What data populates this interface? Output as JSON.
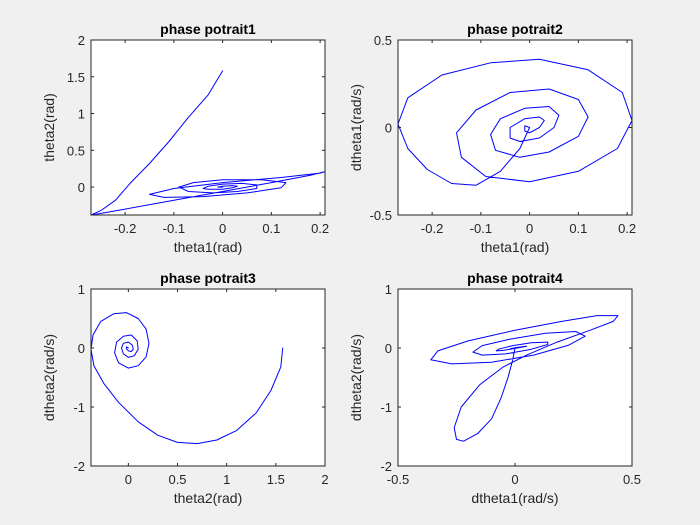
{
  "figure": {
    "background": "#f0f0f0",
    "line_color": "#0000ff"
  },
  "chart_data": [
    {
      "type": "line",
      "title": "phase potrait1",
      "xlabel": "theta1(rad)",
      "ylabel": "theta2(rad)",
      "xlim": [
        -0.27,
        0.21
      ],
      "ylim": [
        -0.38,
        2.0
      ],
      "xticks": [
        -0.2,
        -0.1,
        0,
        0.1,
        0.2
      ],
      "xtick_labels": [
        "-0.2",
        "-0.1",
        "0",
        "0.1",
        "0.2"
      ],
      "yticks": [
        0,
        0.5,
        1,
        1.5,
        2
      ],
      "ytick_labels": [
        "0",
        "0.5",
        "1",
        "1.5",
        "2"
      ],
      "series": [
        {
          "x": [
            0.0,
            -0.03,
            -0.07,
            -0.11,
            -0.15,
            -0.19,
            -0.22,
            -0.25,
            -0.27,
            -0.26,
            -0.2,
            -0.1,
            0.0,
            0.1,
            0.18,
            0.21,
            0.2,
            0.12,
            0.0,
            -0.1,
            -0.15,
            -0.12,
            -0.04,
            0.05,
            0.12,
            0.13,
            0.08,
            0.0,
            -0.06,
            -0.09,
            -0.07,
            -0.02,
            0.03,
            0.07,
            0.07,
            0.04,
            0.0,
            -0.03,
            -0.04,
            -0.03,
            0.0,
            0.02,
            0.03,
            0.02,
            0.0,
            -0.01,
            0.0
          ],
          "y": [
            1.58,
            1.25,
            0.95,
            0.62,
            0.32,
            0.05,
            -0.18,
            -0.32,
            -0.38,
            -0.37,
            -0.3,
            -0.18,
            -0.06,
            0.06,
            0.16,
            0.21,
            0.19,
            0.13,
            0.06,
            -0.02,
            -0.1,
            -0.14,
            -0.13,
            -0.08,
            -0.01,
            0.06,
            0.1,
            0.1,
            0.06,
            0.0,
            -0.06,
            -0.08,
            -0.06,
            -0.02,
            0.03,
            0.05,
            0.04,
            0.01,
            -0.02,
            -0.03,
            -0.03,
            -0.01,
            0.01,
            0.02,
            0.01,
            0.0,
            0.0
          ]
        }
      ]
    },
    {
      "type": "line",
      "title": "phase potrait2",
      "xlabel": "theta1(rad)",
      "ylabel": "dtheta1(rad/s)",
      "xlim": [
        -0.27,
        0.21
      ],
      "ylim": [
        -0.5,
        0.5
      ],
      "xticks": [
        -0.2,
        -0.1,
        0,
        0.1,
        0.2
      ],
      "xtick_labels": [
        "-0.2",
        "-0.1",
        "0",
        "0.1",
        "0.2"
      ],
      "yticks": [
        -0.5,
        0,
        0.5
      ],
      "ytick_labels": [
        "-0.5",
        "0",
        "0.5"
      ],
      "series": [
        {
          "x": [
            0.0,
            -0.02,
            -0.06,
            -0.11,
            -0.16,
            -0.21,
            -0.25,
            -0.27,
            -0.25,
            -0.18,
            -0.08,
            0.02,
            0.12,
            0.19,
            0.21,
            0.18,
            0.1,
            0.0,
            -0.09,
            -0.14,
            -0.15,
            -0.11,
            -0.04,
            0.04,
            0.1,
            0.12,
            0.1,
            0.04,
            -0.02,
            -0.07,
            -0.08,
            -0.06,
            -0.01,
            0.04,
            0.06,
            0.05,
            0.02,
            -0.02,
            -0.04,
            -0.04,
            -0.01,
            0.02,
            0.03,
            0.02,
            0.0,
            -0.01,
            -0.01,
            0.0
          ],
          "y": [
            0.0,
            -0.12,
            -0.25,
            -0.33,
            -0.32,
            -0.24,
            -0.12,
            0.02,
            0.17,
            0.3,
            0.37,
            0.39,
            0.33,
            0.2,
            0.04,
            -0.12,
            -0.25,
            -0.31,
            -0.28,
            -0.17,
            -0.03,
            0.1,
            0.2,
            0.22,
            0.16,
            0.06,
            -0.05,
            -0.14,
            -0.17,
            -0.13,
            -0.04,
            0.05,
            0.11,
            0.12,
            0.07,
            0.0,
            -0.06,
            -0.08,
            -0.06,
            0.0,
            0.05,
            0.06,
            0.04,
            0.0,
            -0.03,
            -0.02,
            0.01,
            0.0
          ]
        }
      ]
    },
    {
      "type": "line",
      "title": "phase potrait3",
      "xlabel": "theta2(rad)",
      "ylabel": "dtheta2(rad/s)",
      "xlim": [
        -0.38,
        2.0
      ],
      "ylim": [
        -2.0,
        1.0
      ],
      "xticks": [
        0,
        0.5,
        1,
        1.5,
        2
      ],
      "xtick_labels": [
        "0",
        "0.5",
        "1",
        "1.5",
        "2"
      ],
      "yticks": [
        -2,
        -1,
        0,
        1
      ],
      "ytick_labels": [
        "-2",
        "-1",
        "0",
        "1"
      ],
      "series": [
        {
          "x": [
            1.57,
            1.55,
            1.45,
            1.3,
            1.1,
            0.9,
            0.7,
            0.5,
            0.3,
            0.1,
            -0.1,
            -0.25,
            -0.35,
            -0.38,
            -0.36,
            -0.28,
            -0.15,
            -0.02,
            0.1,
            0.18,
            0.21,
            0.18,
            0.1,
            0.0,
            -0.1,
            -0.14,
            -0.12,
            -0.05,
            0.03,
            0.09,
            0.1,
            0.06,
            0.0,
            -0.05,
            -0.07,
            -0.05,
            0.0,
            0.04,
            0.05,
            0.03,
            0.0,
            -0.02,
            -0.02,
            0.0
          ],
          "y": [
            0.0,
            -0.32,
            -0.72,
            -1.1,
            -1.4,
            -1.56,
            -1.62,
            -1.6,
            -1.48,
            -1.25,
            -0.92,
            -0.6,
            -0.3,
            -0.02,
            0.22,
            0.45,
            0.58,
            0.6,
            0.5,
            0.32,
            0.08,
            -0.15,
            -0.3,
            -0.34,
            -0.25,
            -0.08,
            0.1,
            0.2,
            0.22,
            0.12,
            -0.02,
            -0.13,
            -0.16,
            -0.1,
            0.0,
            0.08,
            0.1,
            0.05,
            -0.02,
            -0.06,
            -0.05,
            -0.01,
            0.02,
            0.0
          ]
        }
      ]
    },
    {
      "type": "line",
      "title": "phase potrait4",
      "xlabel": "dtheta1(rad/s)",
      "ylabel": "dtheta2(rad/s)",
      "xlim": [
        -0.5,
        0.5
      ],
      "ylim": [
        -2.0,
        1.0
      ],
      "xticks": [
        -0.5,
        0,
        0.5
      ],
      "xtick_labels": [
        "-0.5",
        "0",
        "0.5"
      ],
      "yticks": [
        -2,
        -1,
        0,
        1
      ],
      "ytick_labels": [
        "-2",
        "-1",
        "0",
        "1"
      ],
      "series": [
        {
          "x": [
            0.0,
            -0.01,
            -0.03,
            -0.06,
            -0.1,
            -0.16,
            -0.22,
            -0.25,
            -0.26,
            -0.23,
            -0.15,
            -0.05,
            0.05,
            0.18,
            0.32,
            0.42,
            0.44,
            0.35,
            0.2,
            0.0,
            -0.2,
            -0.33,
            -0.36,
            -0.27,
            -0.1,
            0.08,
            0.23,
            0.3,
            0.26,
            0.13,
            -0.02,
            -0.14,
            -0.18,
            -0.14,
            -0.04,
            0.07,
            0.14,
            0.14,
            0.07,
            -0.01,
            -0.07,
            -0.08,
            -0.05,
            0.01,
            0.05,
            0.05,
            0.01,
            -0.02,
            -0.02,
            0.0
          ],
          "y": [
            0.0,
            -0.2,
            -0.5,
            -0.85,
            -1.2,
            -1.45,
            -1.58,
            -1.55,
            -1.35,
            -1.0,
            -0.62,
            -0.32,
            -0.12,
            0.1,
            0.3,
            0.45,
            0.55,
            0.55,
            0.45,
            0.3,
            0.12,
            -0.05,
            -0.2,
            -0.27,
            -0.24,
            -0.12,
            0.05,
            0.2,
            0.28,
            0.25,
            0.15,
            0.04,
            -0.07,
            -0.12,
            -0.1,
            -0.02,
            0.06,
            0.1,
            0.09,
            0.04,
            -0.02,
            -0.05,
            -0.04,
            0.0,
            0.03,
            0.03,
            0.01,
            -0.01,
            -0.01,
            0.0
          ]
        }
      ]
    }
  ]
}
